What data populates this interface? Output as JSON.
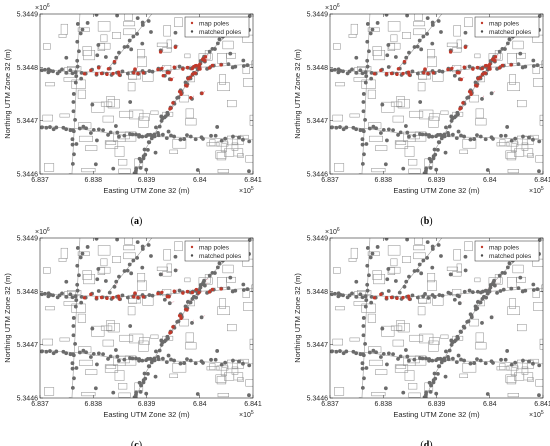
{
  "figure": {
    "panels": [
      {
        "label_open": "(",
        "label_letter": "a",
        "label_close": ")"
      },
      {
        "label_open": "(",
        "label_letter": "b",
        "label_close": ")"
      },
      {
        "label_open": "(",
        "label_letter": "c",
        "label_close": ")"
      },
      {
        "label_open": "(",
        "label_letter": "d",
        "label_close": ")"
      }
    ]
  },
  "chart_data": [
    {
      "type": "scatter",
      "panel": "a",
      "xlabel": "Easting UTM Zone 32 (m)",
      "ylabel": "Northing UTM Zone 32 (m)",
      "x_multiplier": "×10",
      "x_multiplier_exp": "5",
      "y_multiplier": "×10",
      "y_multiplier_exp": "6",
      "x_ticks": [
        "6.837",
        "6.838",
        "6.839",
        "6.84",
        "6.841"
      ],
      "y_ticks": [
        "5.3446",
        "5.3447",
        "5.3448",
        "5.3449"
      ],
      "xlim": [
        683700,
        684100
      ],
      "ylim": [
        5344600,
        5344900
      ],
      "legend": [
        "map poles",
        "matched poles"
      ],
      "legend_position": "top-right",
      "colors": {
        "map_poles": "#6b6b6b",
        "matched_poles": "#c0392b",
        "match_links": "#e89aa8"
      },
      "matched_intensity": 1.0
    },
    {
      "type": "scatter",
      "panel": "b",
      "xlabel": "Easting UTM Zone 32 (m)",
      "ylabel": "Northing UTM Zone 32 (m)",
      "x_multiplier": "×10",
      "x_multiplier_exp": "5",
      "y_multiplier": "×10",
      "y_multiplier_exp": "6",
      "x_ticks": [
        "6.837",
        "6.838",
        "6.839",
        "6.84",
        "6.841"
      ],
      "y_ticks": [
        "5.3446",
        "5.3447",
        "5.3448",
        "5.3449"
      ],
      "xlim": [
        683700,
        684100
      ],
      "ylim": [
        5344600,
        5344900
      ],
      "legend": [
        "map poles",
        "matched poles"
      ],
      "legend_position": "top-right",
      "colors": {
        "map_poles": "#6b6b6b",
        "matched_poles": "#c0392b",
        "match_links": "#e89aa8"
      },
      "matched_intensity": 0.9
    },
    {
      "type": "scatter",
      "panel": "c",
      "xlabel": "Easting UTM Zone 32 (m)",
      "ylabel": "Northing UTM Zone 32 (m)",
      "x_multiplier": "×10",
      "x_multiplier_exp": "5",
      "y_multiplier": "×10",
      "y_multiplier_exp": "6",
      "x_ticks": [
        "6.837",
        "6.838",
        "6.839",
        "6.84",
        "6.841"
      ],
      "y_ticks": [
        "5.3446",
        "5.3447",
        "5.3448",
        "5.3449"
      ],
      "xlim": [
        683700,
        684100
      ],
      "ylim": [
        5344600,
        5344900
      ],
      "legend": [
        "map poles",
        "matched poles"
      ],
      "legend_position": "top-right",
      "colors": {
        "map_poles": "#6b6b6b",
        "matched_poles": "#c0392b",
        "match_links": "#e89aa8"
      },
      "matched_intensity": 0.6
    },
    {
      "type": "scatter",
      "panel": "d",
      "xlabel": "Easting UTM Zone 32 (m)",
      "ylabel": "Northing UTM Zone 32 (m)",
      "x_multiplier": "×10",
      "x_multiplier_exp": "5",
      "y_multiplier": "×10",
      "y_multiplier_exp": "6",
      "x_ticks": [
        "6.837",
        "6.838",
        "6.839",
        "6.84",
        "6.841"
      ],
      "y_ticks": [
        "5.3446",
        "5.3447",
        "5.3448",
        "5.3449"
      ],
      "xlim": [
        683700,
        684100
      ],
      "ylim": [
        5344600,
        5344900
      ],
      "legend": [
        "map poles",
        "matched poles"
      ],
      "legend_position": "top-right",
      "colors": {
        "map_poles": "#6b6b6b",
        "matched_poles": "#c0392b",
        "match_links": "#e89aa8"
      },
      "matched_intensity": 0.15
    }
  ]
}
